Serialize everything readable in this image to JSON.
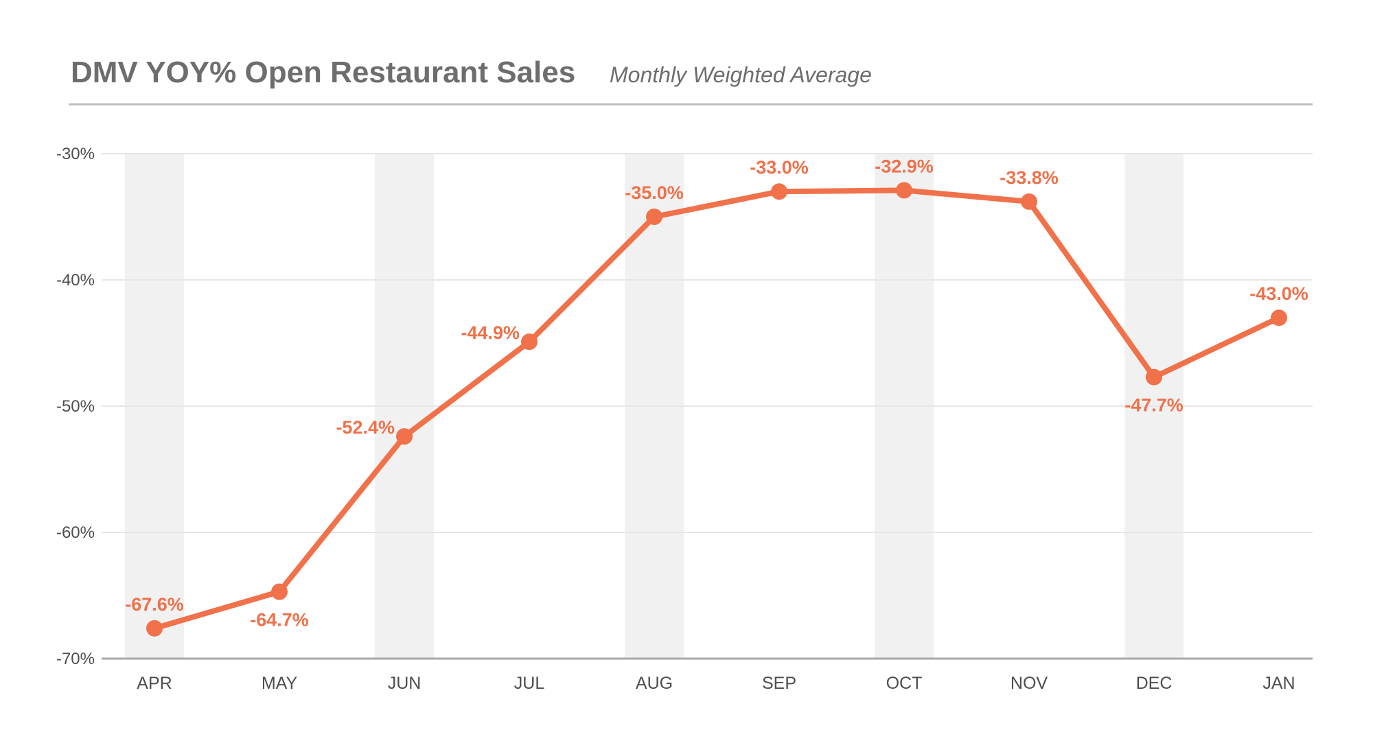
{
  "header": {
    "title": "DMV YOY% Open Restaurant Sales",
    "subtitle": "Monthly Weighted Average"
  },
  "colors": {
    "line": "#f0714a",
    "label": "#f0714a",
    "band": "#f1f1f1",
    "grid": "#e6e6e6",
    "axis": "#a8a8a8",
    "title": "#6d6d6d",
    "tick": "#4d4d4d"
  },
  "chart_data": {
    "type": "line",
    "title": "DMV YOY% Open Restaurant Sales",
    "subtitle": "Monthly Weighted Average",
    "xlabel": "",
    "ylabel": "",
    "categories": [
      "APR",
      "MAY",
      "JUN",
      "JUL",
      "AUG",
      "SEP",
      "OCT",
      "NOV",
      "DEC",
      "JAN"
    ],
    "series": [
      {
        "values": [
          -67.6,
          -64.7,
          -52.4,
          -44.9,
          -35.0,
          -33.0,
          -32.9,
          -33.8,
          -47.7,
          -43.0
        ],
        "labels": [
          "-67.6%",
          "-64.7%",
          "-52.4%",
          "-44.9%",
          "-35.0%",
          "-33.0%",
          "-32.9%",
          "-33.8%",
          "-47.7%",
          "-43.0%"
        ]
      }
    ],
    "ylim": [
      -70,
      -30
    ],
    "yticks": [
      -30,
      -40,
      -50,
      -60,
      -70
    ],
    "ytick_labels": [
      "-30%",
      "-40%",
      "-50%",
      "-60%",
      "-70%"
    ],
    "grid": true,
    "alternating_column_bands": true,
    "label_positions": [
      "above",
      "below",
      "left",
      "left",
      "above",
      "above",
      "above",
      "above",
      "below",
      "above"
    ],
    "legend": "none"
  }
}
